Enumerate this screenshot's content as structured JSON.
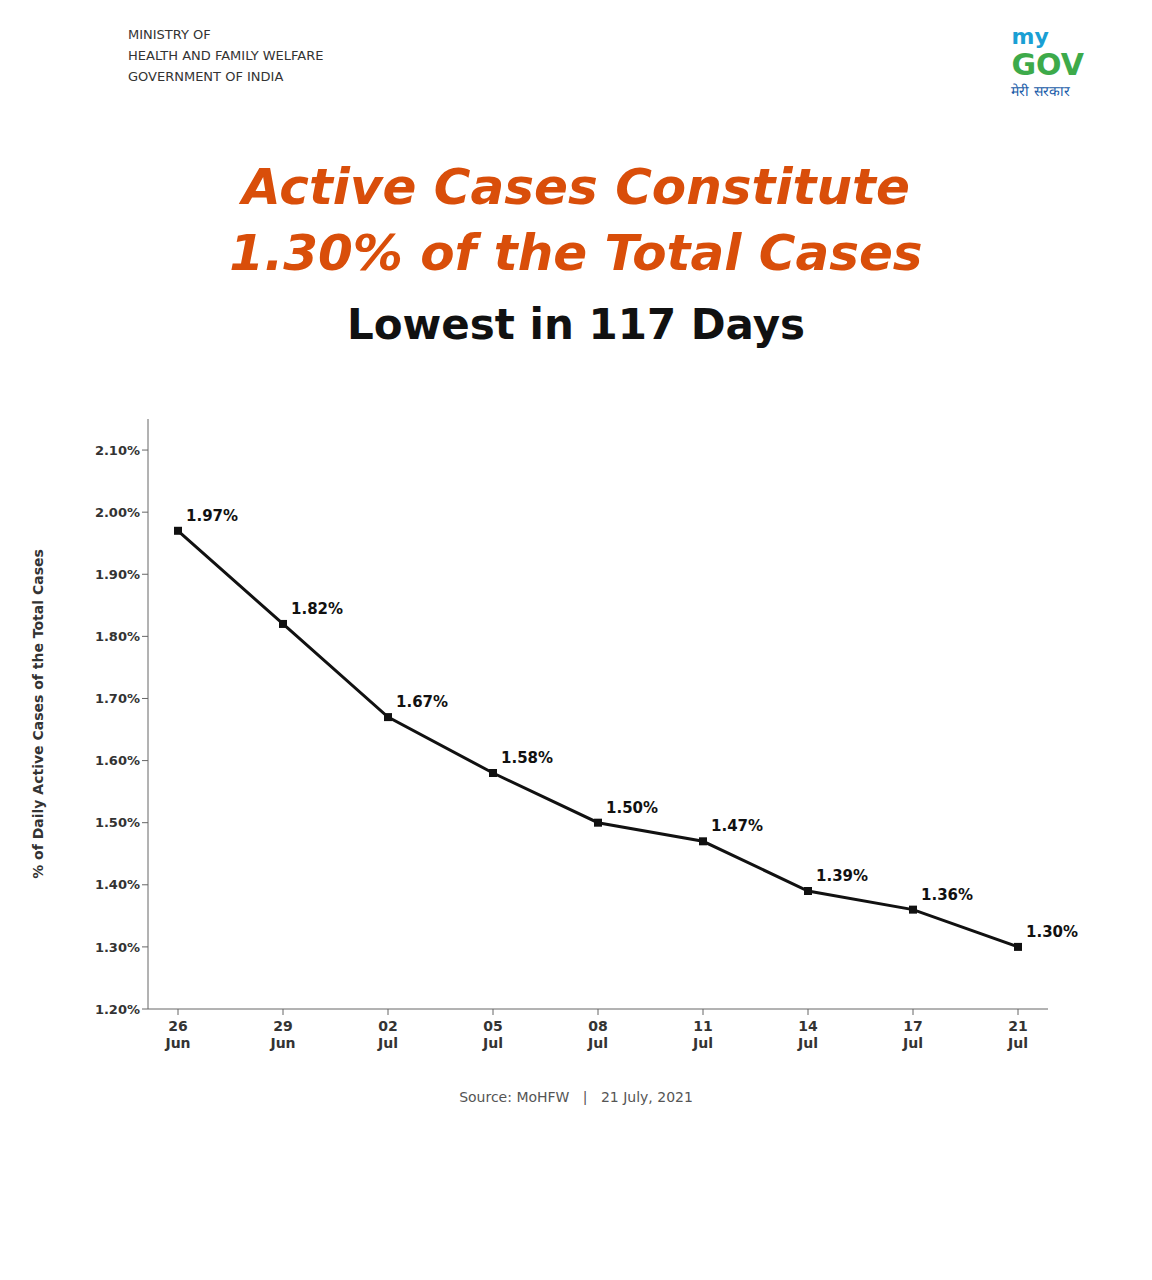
{
  "chart_data": {
    "type": "line",
    "title": "Active Cases Constitute\n1.30% of the Total Cases",
    "subtitle": "Lowest in 117 Days",
    "y_label": "% of Daily Active Cases of the Total Cases",
    "categories": [
      "26\nJun",
      "29\nJun",
      "02\nJul",
      "05\nJul",
      "08\nJul",
      "11\nJul",
      "14\nJul",
      "17\nJul",
      "21\nJul"
    ],
    "values": [
      1.97,
      1.82,
      1.67,
      1.58,
      1.5,
      1.47,
      1.39,
      1.36,
      1.3
    ],
    "value_labels": [
      "1.97%",
      "1.82%",
      "1.67%",
      "1.58%",
      "1.50%",
      "1.47%",
      "1.39%",
      "1.36%",
      "1.30%"
    ],
    "data_labels": true,
    "color": "#111111",
    "marker": "square",
    "ylim": [
      1.2,
      2.15
    ],
    "yticks": [
      {
        "value": 1.2,
        "label": "1.20%"
      },
      {
        "value": 1.3,
        "label": "1.30%"
      },
      {
        "value": 1.4,
        "label": "1.40%"
      },
      {
        "value": 1.5,
        "label": "1.50%"
      },
      {
        "value": 1.6,
        "label": "1.60%"
      },
      {
        "value": 1.7,
        "label": "1.70%"
      },
      {
        "value": 1.8,
        "label": "1.80%"
      },
      {
        "value": 1.9,
        "label": "1.90%"
      },
      {
        "value": 2.0,
        "label": "2.00%"
      },
      {
        "value": 2.1,
        "label": "2.10%"
      }
    ],
    "grid": false,
    "annotations": [
      "MINISTRY OF\nHEALTH AND FAMILY WELFARE\nGOVERNMENT OF INDIA",
      "my",
      "GOV",
      "मेरी सरकार",
      "Source: MoHFW   |   21 July, 2021"
    ]
  }
}
